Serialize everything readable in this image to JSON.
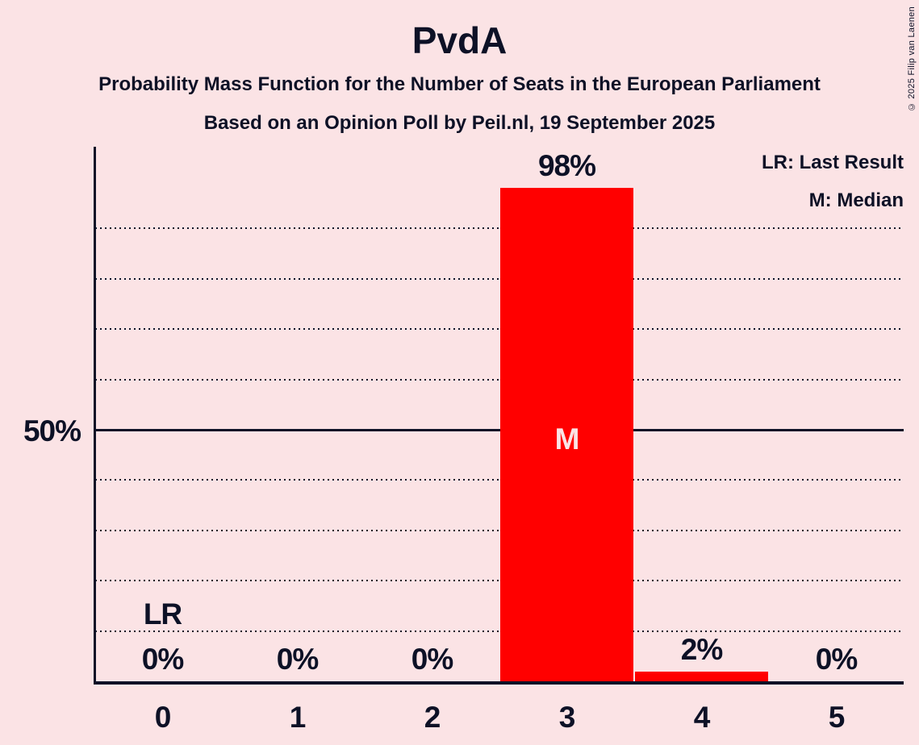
{
  "title": "PvdA",
  "subtitles": [
    "Probability Mass Function for the Number of Seats in the European Parliament",
    "Based on an Opinion Poll by Peil.nl, 19 September 2025"
  ],
  "legend": {
    "last_result": "LR: Last Result",
    "median": "M: Median"
  },
  "copyright": "© 2025 Filip van Laenen",
  "y_axis": {
    "label": "50%",
    "labeled_pct": 50
  },
  "colors": {
    "background": "#fbe3e5",
    "ink": "#0d1126",
    "bar": "#ff0000",
    "median_label": "#fbe3e5"
  },
  "chart_data": {
    "type": "bar",
    "title": "PvdA",
    "categories": [
      "0",
      "1",
      "2",
      "3",
      "4",
      "5"
    ],
    "values": [
      0,
      0,
      0,
      98,
      2,
      0
    ],
    "value_labels": [
      "0%",
      "0%",
      "0%",
      "98%",
      "2%",
      "0%"
    ],
    "ylim": [
      0,
      100
    ],
    "y_tick_interval_pct": 10,
    "gridlines_pct": [
      10,
      20,
      30,
      40,
      50,
      60,
      70,
      80,
      90
    ],
    "solid_gridline_pct": 50,
    "grid": "dotted-horizontal",
    "legend_position": "top-right",
    "median": {
      "seat": "3",
      "marker": "M"
    },
    "last_result": {
      "seat": "0",
      "marker": "LR"
    }
  }
}
